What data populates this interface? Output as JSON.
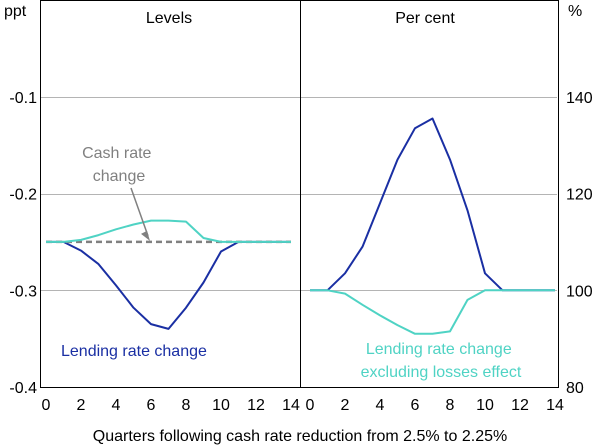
{
  "chart_data": {
    "type": "line",
    "xlabel": "Quarters following cash rate reduction from 2.5% to 2.25%",
    "x_ticks": [
      0,
      2,
      4,
      6,
      8,
      10,
      12,
      14
    ],
    "colors": {
      "dark_blue": "#1a2fa3",
      "turquoise": "#4fd3c4",
      "cash_rate": "#808080",
      "grid": "#b4b4b4",
      "frame": "#000000"
    },
    "panels": [
      {
        "title": "Levels",
        "unit": "ppt",
        "ylim": [
          -0.4,
          0.0
        ],
        "y_ticks": [
          -0.1,
          -0.2,
          -0.3,
          -0.4
        ],
        "y_tick_labels": [
          "-0.1",
          "-0.2",
          "-0.3",
          "-0.4"
        ],
        "xlim": [
          0,
          14
        ],
        "series": [
          {
            "name": "Lending rate change",
            "color": "#1a2fa3",
            "dashed": false,
            "x": [
              0,
              1,
              2,
              3,
              4,
              5,
              6,
              7,
              8,
              9,
              10,
              11,
              12,
              13,
              14
            ],
            "values": [
              -0.25,
              -0.25,
              -0.259,
              -0.273,
              -0.295,
              -0.318,
              -0.335,
              -0.34,
              -0.318,
              -0.292,
              -0.26,
              -0.25,
              -0.25,
              -0.25,
              -0.25
            ]
          },
          {
            "name": "Cash rate change",
            "color": "#808080",
            "dashed": true,
            "x": [
              0,
              14
            ],
            "values": [
              -0.25,
              -0.25
            ]
          },
          {
            "name": "Lending rate change excluding losses effect",
            "color": "#4fd3c4",
            "dashed": false,
            "x": [
              0,
              1,
              2,
              3,
              4,
              5,
              6,
              7,
              8,
              9,
              10,
              11,
              12,
              13,
              14
            ],
            "values": [
              -0.25,
              -0.25,
              -0.248,
              -0.243,
              -0.237,
              -0.232,
              -0.228,
              -0.228,
              -0.229,
              -0.246,
              -0.25,
              -0.25,
              -0.25,
              -0.25,
              -0.25
            ]
          }
        ]
      },
      {
        "title": "Per cent",
        "unit": "%",
        "ylim": [
          80,
          160
        ],
        "y_ticks": [
          140,
          120,
          100,
          80
        ],
        "y_tick_labels": [
          "140",
          "120",
          "100",
          "80"
        ],
        "xlim": [
          0,
          14
        ],
        "series": [
          {
            "name": "Lending rate change",
            "color": "#1a2fa3",
            "dashed": false,
            "x": [
              0,
              1,
              2,
              3,
              4,
              5,
              6,
              7,
              8,
              9,
              10,
              11,
              12,
              13,
              14
            ],
            "values": [
              100,
              100,
              103.5,
              109,
              118,
              127,
              133.5,
              135.5,
              127,
              116.5,
              103.5,
              100,
              100,
              100,
              100
            ]
          },
          {
            "name": "Lending rate change excluding losses effect",
            "color": "#4fd3c4",
            "dashed": false,
            "x": [
              0,
              1,
              2,
              3,
              4,
              5,
              6,
              7,
              8,
              9,
              10,
              11,
              12,
              13,
              14
            ],
            "values": [
              100,
              100,
              99.3,
              97,
              94.8,
              92.8,
              91,
              91,
              91.5,
              98,
              100,
              100,
              100,
              100,
              100
            ]
          }
        ]
      }
    ],
    "annotations": {
      "cash_rate": [
        "Cash rate",
        "change"
      ],
      "lending_left": "Lending rate change",
      "lending_right": [
        "Lending rate change",
        "excluding losses effect"
      ]
    }
  }
}
